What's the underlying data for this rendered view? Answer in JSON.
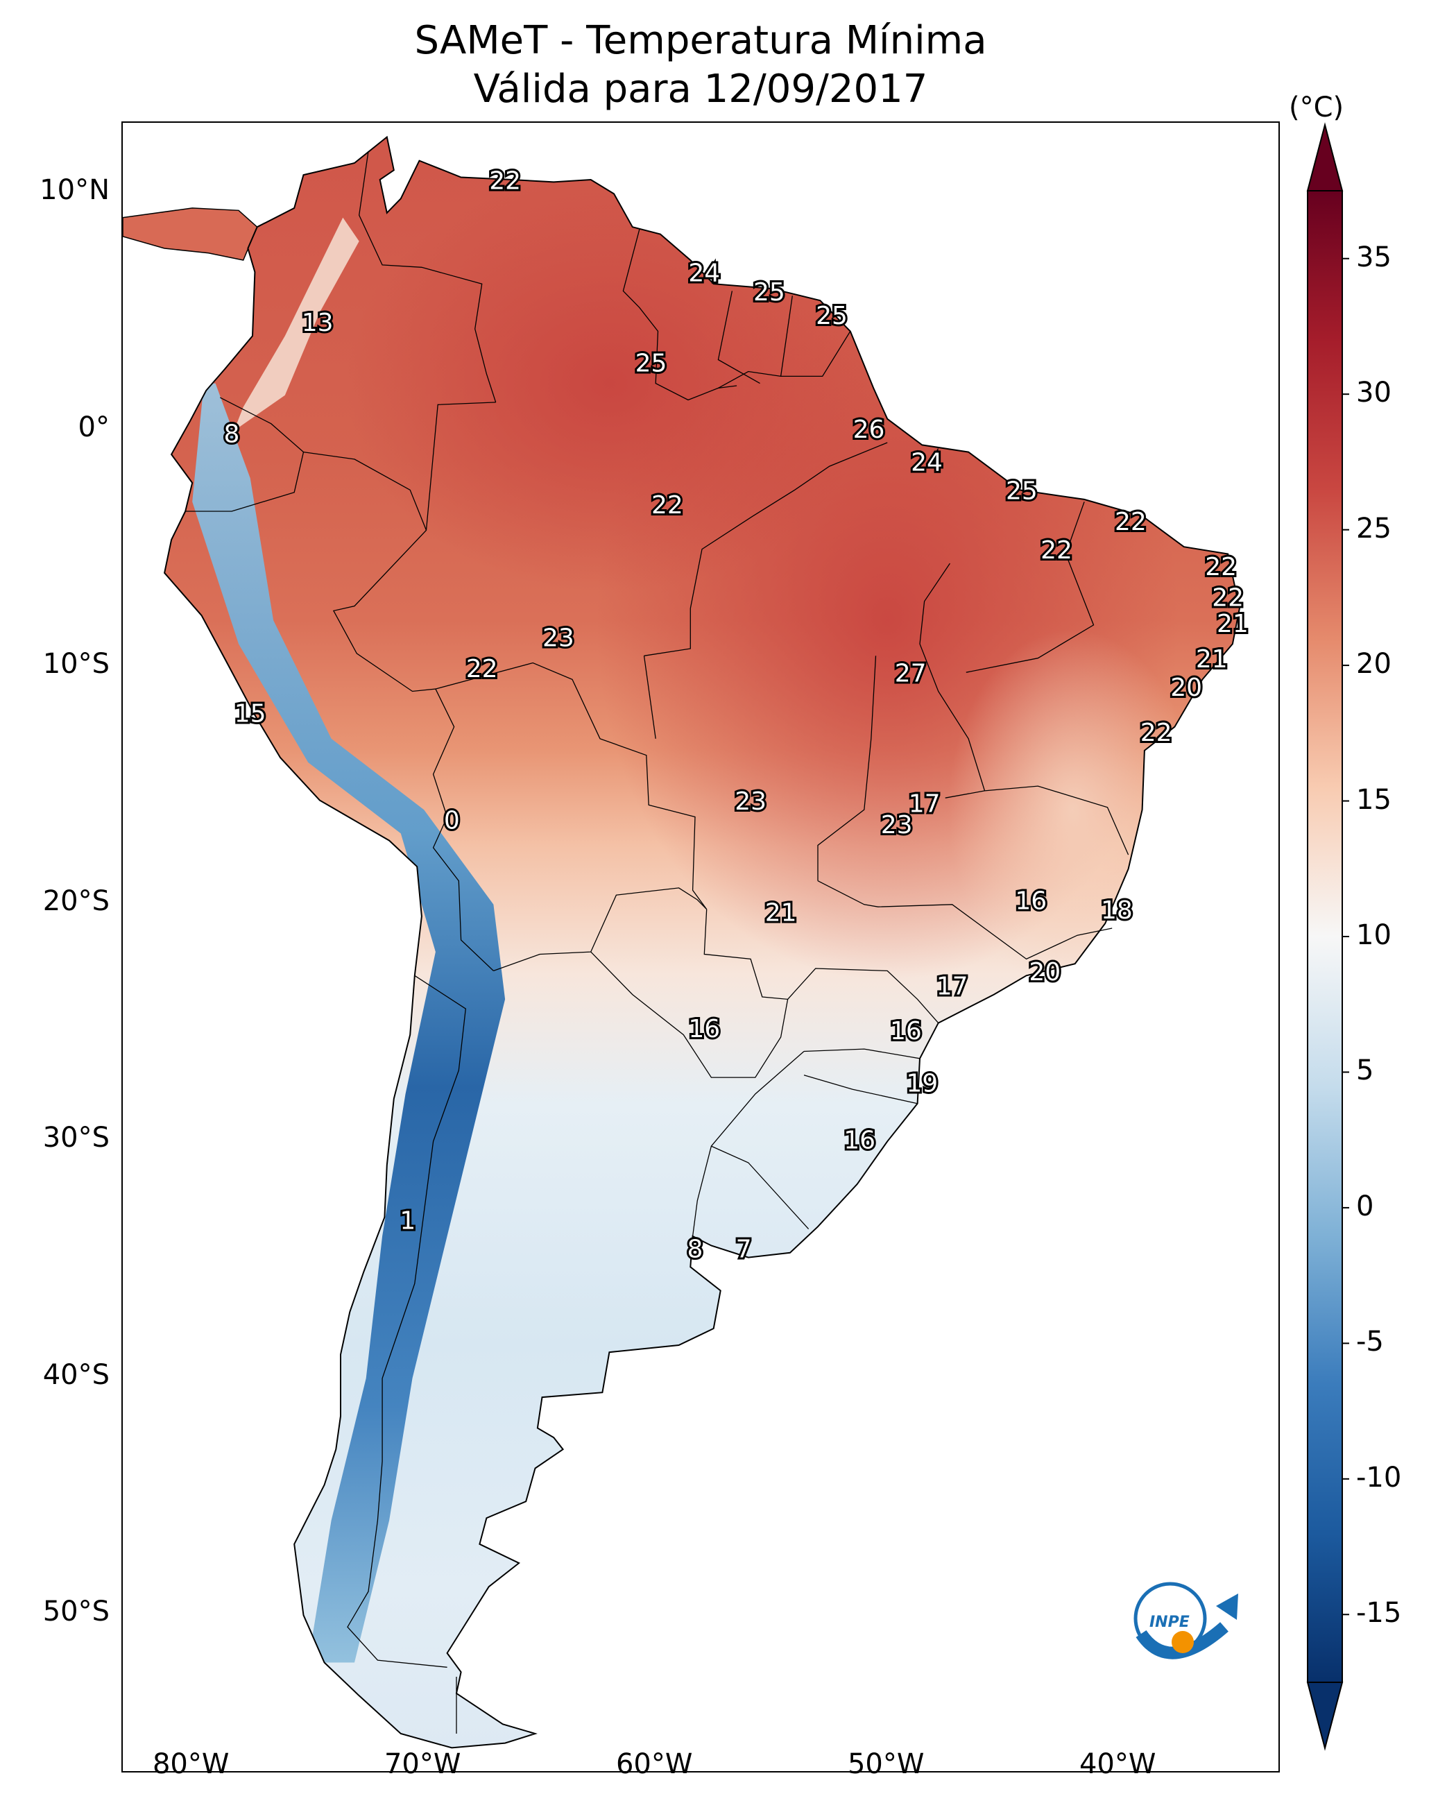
{
  "title_line1": "SAMeT - Temperatura Mínima",
  "title_line2": "Válida para 12/09/2017",
  "colorbar": {
    "unit": "(°C)",
    "min": -15,
    "max": 35,
    "ticks": [
      "35",
      "30",
      "25",
      "20",
      "15",
      "10",
      "5",
      "0",
      "-5",
      "-10",
      "-15"
    ]
  },
  "axes": {
    "lat_ticks": [
      "10°N",
      "0°",
      "10°S",
      "20°S",
      "30°S",
      "40°S",
      "50°S"
    ],
    "lon_ticks": [
      "80°W",
      "70°W",
      "60°W",
      "50°W",
      "40°W"
    ]
  },
  "logo": {
    "text": "INPE",
    "colors": [
      "#1a6fb5",
      "#f39200"
    ]
  },
  "point_values": [
    {
      "lon": -66.5,
      "lat": 10.5,
      "value": "22"
    },
    {
      "lon": -57.9,
      "lat": 6.6,
      "value": "24"
    },
    {
      "lon": -55.1,
      "lat": 5.8,
      "value": "25"
    },
    {
      "lon": -52.4,
      "lat": 4.8,
      "value": "25"
    },
    {
      "lon": -74.6,
      "lat": 4.5,
      "value": "13"
    },
    {
      "lon": -60.2,
      "lat": 2.8,
      "value": "25"
    },
    {
      "lon": -50.8,
      "lat": 0.0,
      "value": "26"
    },
    {
      "lon": -78.3,
      "lat": -0.2,
      "value": "8"
    },
    {
      "lon": -48.3,
      "lat": -1.4,
      "value": "24"
    },
    {
      "lon": -44.2,
      "lat": -2.6,
      "value": "25"
    },
    {
      "lon": -59.5,
      "lat": -3.2,
      "value": "22"
    },
    {
      "lon": -39.5,
      "lat": -3.9,
      "value": "22"
    },
    {
      "lon": -42.7,
      "lat": -5.1,
      "value": "22"
    },
    {
      "lon": -35.6,
      "lat": -5.8,
      "value": "22"
    },
    {
      "lon": -35.3,
      "lat": -7.1,
      "value": "22"
    },
    {
      "lon": -35.1,
      "lat": -8.2,
      "value": "21"
    },
    {
      "lon": -64.2,
      "lat": -8.8,
      "value": "23"
    },
    {
      "lon": -36.0,
      "lat": -9.7,
      "value": "21"
    },
    {
      "lon": -67.5,
      "lat": -10.1,
      "value": "22"
    },
    {
      "lon": -49.0,
      "lat": -10.3,
      "value": "27"
    },
    {
      "lon": -37.1,
      "lat": -10.9,
      "value": "20"
    },
    {
      "lon": -38.4,
      "lat": -12.8,
      "value": "22"
    },
    {
      "lon": -77.5,
      "lat": -12.0,
      "value": "15"
    },
    {
      "lon": -55.9,
      "lat": -15.7,
      "value": "23"
    },
    {
      "lon": -48.4,
      "lat": -15.8,
      "value": "17"
    },
    {
      "lon": -49.6,
      "lat": -16.7,
      "value": "23"
    },
    {
      "lon": -68.8,
      "lat": -16.5,
      "value": "0"
    },
    {
      "lon": -54.6,
      "lat": -20.4,
      "value": "21"
    },
    {
      "lon": -43.8,
      "lat": -19.9,
      "value": "16"
    },
    {
      "lon": -40.1,
      "lat": -20.3,
      "value": "18"
    },
    {
      "lon": -43.2,
      "lat": -22.9,
      "value": "20"
    },
    {
      "lon": -47.2,
      "lat": -23.5,
      "value": "17"
    },
    {
      "lon": -57.9,
      "lat": -25.3,
      "value": "16"
    },
    {
      "lon": -49.2,
      "lat": -25.4,
      "value": "16"
    },
    {
      "lon": -48.5,
      "lat": -27.6,
      "value": "19"
    },
    {
      "lon": -51.2,
      "lat": -30.0,
      "value": "16"
    },
    {
      "lon": -70.7,
      "lat": -33.4,
      "value": "1"
    },
    {
      "lon": -58.3,
      "lat": -34.6,
      "value": "8"
    },
    {
      "lon": -56.2,
      "lat": -34.6,
      "value": "7"
    }
  ]
}
